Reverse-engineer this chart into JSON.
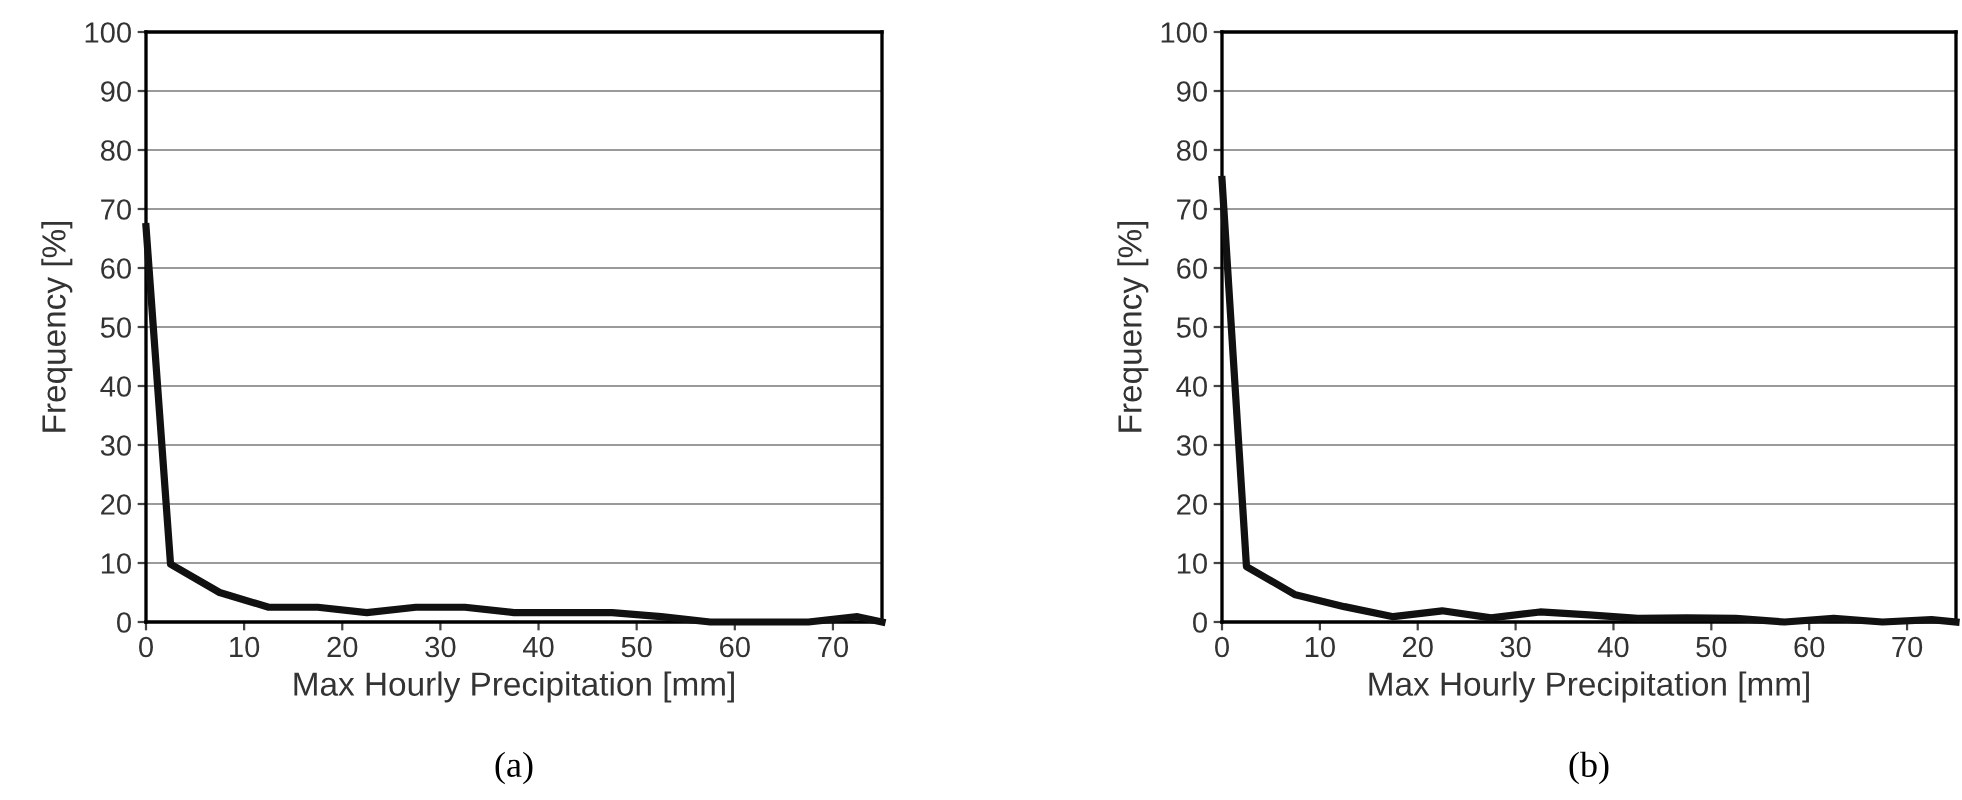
{
  "chart_data": [
    {
      "type": "line",
      "xlabel": "Max Hourly Precipitation [mm]",
      "ylabel": "Frequency [%]",
      "annotations": [
        "(a)"
      ],
      "x": [
        0,
        2.5,
        7.5,
        12.5,
        17.5,
        22.5,
        27.5,
        32.5,
        37.5,
        42.5,
        47.5,
        52.5,
        57.5,
        62.5,
        67.5,
        72.5,
        75
      ],
      "series": [
        {
          "color": "#111111",
          "values": [
            67,
            9.8,
            5.0,
            2.5,
            2.5,
            1.6,
            2.5,
            2.5,
            1.6,
            1.6,
            1.6,
            0.9,
            0,
            0,
            0,
            0.9,
            0
          ]
        }
      ],
      "xlim": [
        0,
        75
      ],
      "xticks": [
        0,
        10,
        20,
        30,
        40,
        50,
        60,
        70
      ],
      "ylim": [
        0,
        100
      ],
      "yticks": [
        0,
        10,
        20,
        30,
        40,
        50,
        60,
        70,
        80,
        90,
        100
      ],
      "grid": "y",
      "legend": false,
      "marker": "none",
      "line_style": "solid"
    },
    {
      "type": "line",
      "xlabel": "Max Hourly Precipitation [mm]",
      "ylabel": "Frequency [%]",
      "annotations": [
        "(b)"
      ],
      "x": [
        0,
        2.5,
        7.5,
        12.5,
        17.5,
        22.5,
        27.5,
        32.5,
        37.5,
        42.5,
        47.5,
        52.5,
        57.5,
        62.5,
        67.5,
        72.5,
        75
      ],
      "series": [
        {
          "color": "#111111",
          "values": [
            75,
            9.4,
            4.6,
            2.6,
            0.9,
            1.9,
            0.7,
            1.7,
            1.2,
            0.6,
            0.7,
            0.6,
            0,
            0.6,
            0,
            0.4,
            0
          ]
        }
      ],
      "xlim": [
        0,
        75
      ],
      "xticks": [
        0,
        10,
        20,
        30,
        40,
        50,
        60,
        70
      ],
      "ylim": [
        0,
        100
      ],
      "yticks": [
        0,
        10,
        20,
        30,
        40,
        50,
        60,
        70,
        80,
        90,
        100
      ],
      "grid": "y",
      "legend": false,
      "marker": "none",
      "line_style": "solid"
    }
  ]
}
